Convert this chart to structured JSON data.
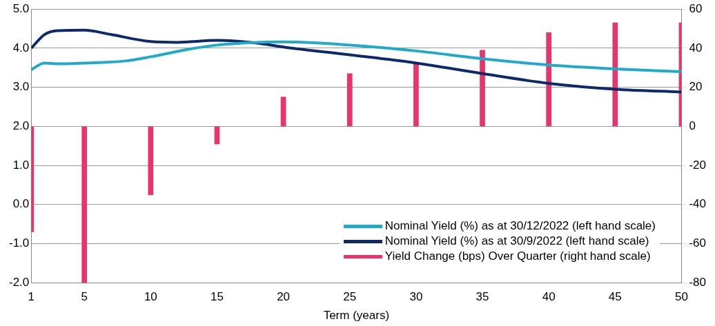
{
  "chart_data": {
    "type": "line",
    "xlabel": "Term (years)",
    "xlim": [
      1,
      50
    ],
    "xticks": [
      1,
      5,
      10,
      15,
      20,
      25,
      30,
      35,
      40,
      45,
      50
    ],
    "ylim": [
      -2,
      5
    ],
    "yticks": [
      {
        "value": -2,
        "label": "-2.0"
      },
      {
        "value": -1,
        "label": "-1.0"
      },
      {
        "value": 0,
        "label": "0.0"
      },
      {
        "value": 1,
        "label": "1.0"
      },
      {
        "value": 2,
        "label": "2.0"
      },
      {
        "value": 3,
        "label": "3.0"
      },
      {
        "value": 4,
        "label": "4.0"
      },
      {
        "value": 5,
        "label": "5.0"
      }
    ],
    "y2lim": [
      -80,
      60
    ],
    "y2ticks": [
      -80,
      -60,
      -40,
      -20,
      0,
      20,
      40,
      60
    ],
    "grid": "y",
    "legend": "bottom right",
    "series": [
      {
        "name": "Nominal Yield (%) as at 30/12/2022 (left hand scale)",
        "color": "#1fa9cb",
        "x": [
          1,
          2,
          3,
          5,
          8,
          10,
          13,
          15,
          18,
          20,
          25,
          30,
          35,
          40,
          45,
          50
        ],
        "values": [
          3.45,
          3.62,
          3.6,
          3.62,
          3.67,
          3.78,
          3.98,
          4.08,
          4.15,
          4.16,
          4.08,
          3.93,
          3.73,
          3.57,
          3.47,
          3.4
        ]
      },
      {
        "name": "Nominal Yield (%) as at 30/9/2022 (left hand scale)",
        "color": "#0c2a6b",
        "x": [
          1,
          2,
          3,
          5,
          7,
          10,
          12,
          15,
          18,
          20,
          25,
          30,
          35,
          40,
          45,
          50
        ],
        "values": [
          4.0,
          4.35,
          4.45,
          4.46,
          4.35,
          4.17,
          4.15,
          4.2,
          4.13,
          4.03,
          3.83,
          3.62,
          3.35,
          3.1,
          2.95,
          2.88
        ]
      },
      {
        "name": "Yield Change (bps) Over Quarter (right hand scale)",
        "type": "bar",
        "axis": "y2",
        "color": "#e8336b",
        "x": [
          1,
          5,
          10,
          15,
          20,
          25,
          30,
          35,
          40,
          45,
          50
        ],
        "values": [
          -54,
          -80,
          -35,
          -9,
          15,
          27,
          32,
          39,
          48,
          53,
          53
        ]
      }
    ]
  }
}
